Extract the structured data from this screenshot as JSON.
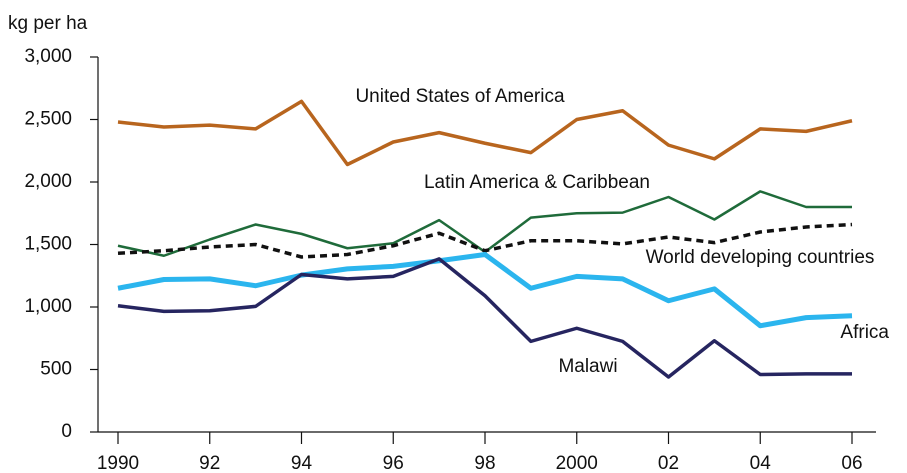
{
  "chart_data": {
    "type": "line",
    "y_axis_label": "kg per ha",
    "x": [
      1990,
      1991,
      1992,
      1993,
      1994,
      1995,
      1996,
      1997,
      1998,
      1999,
      2000,
      2001,
      2002,
      2003,
      2004,
      2005,
      2006
    ],
    "series": [
      {
        "name": "United States of America",
        "color": "#b8651e",
        "values": [
          2480,
          2440,
          2455,
          2425,
          2645,
          2140,
          2320,
          2395,
          2310,
          2235,
          2500,
          2570,
          2295,
          2185,
          2425,
          2405,
          2490
        ]
      },
      {
        "name": "Latin America & Caribbean",
        "color": "#1f6b3a",
        "values": [
          1490,
          1410,
          1540,
          1660,
          1585,
          1470,
          1510,
          1695,
          1440,
          1715,
          1750,
          1755,
          1880,
          1700,
          1925,
          1800,
          1800
        ]
      },
      {
        "name": "World developing countries",
        "color": "#111111",
        "dashed": true,
        "values": [
          1430,
          1450,
          1480,
          1500,
          1400,
          1420,
          1490,
          1590,
          1450,
          1530,
          1530,
          1505,
          1560,
          1515,
          1600,
          1640,
          1660
        ]
      },
      {
        "name": "Africa",
        "color": "#2bb5ee",
        "values": [
          1150,
          1220,
          1225,
          1170,
          1255,
          1305,
          1325,
          1370,
          1420,
          1150,
          1245,
          1225,
          1050,
          1145,
          850,
          915,
          930
        ]
      },
      {
        "name": "Malawi",
        "color": "#262560",
        "values": [
          1010,
          965,
          970,
          1005,
          1260,
          1225,
          1245,
          1385,
          1090,
          725,
          830,
          725,
          440,
          730,
          460,
          465,
          465
        ]
      }
    ],
    "xlim": [
      1990,
      2006
    ],
    "xticks": [
      1990,
      {
        "value": 1992,
        "label": "92"
      },
      {
        "value": 1994,
        "label": "94"
      },
      {
        "value": 1996,
        "label": "96"
      },
      {
        "value": 1998,
        "label": "98"
      },
      2000,
      {
        "value": 2002,
        "label": "02"
      },
      {
        "value": 2004,
        "label": "04"
      },
      {
        "value": 2006,
        "label": "06"
      }
    ],
    "ylim": [
      0,
      3000
    ],
    "yticks": [
      0,
      500,
      {
        "value": 1000,
        "label": "1,000"
      },
      {
        "value": 1500,
        "label": "1,500"
      },
      {
        "value": 2000,
        "label": "2,000"
      },
      {
        "value": 2500,
        "label": "2,500"
      },
      {
        "value": 3000,
        "label": "3,000"
      }
    ],
    "grid": false
  }
}
